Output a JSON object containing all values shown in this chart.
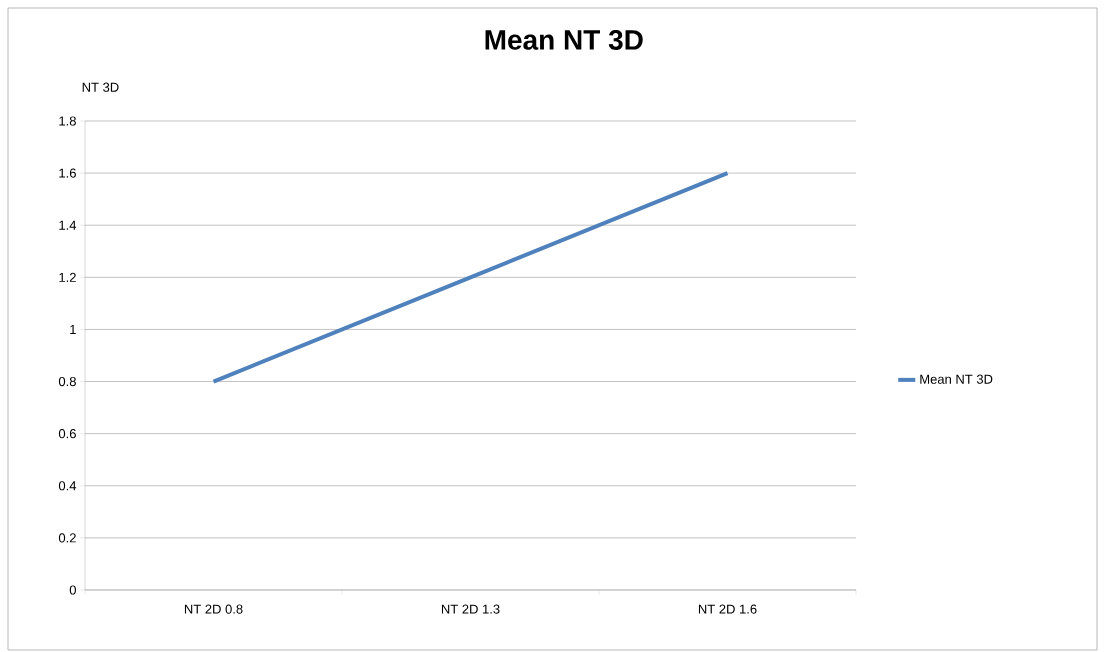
{
  "chart_data": {
    "type": "line",
    "title": "Mean NT 3D",
    "ylabel": "NT 3D",
    "categories": [
      "NT 2D 0.8",
      "NT 2D 1.3",
      "NT 2D 1.6"
    ],
    "series": [
      {
        "name": "Mean NT 3D",
        "color": "#4f81bd",
        "values": [
          0.8,
          1.2,
          1.6
        ]
      }
    ],
    "ylim": [
      0,
      1.8
    ],
    "yticks": [
      0,
      0.2,
      0.4,
      0.6,
      0.8,
      1,
      1.2,
      1.4,
      1.6,
      1.8
    ],
    "grid": "y",
    "legend": "right"
  }
}
